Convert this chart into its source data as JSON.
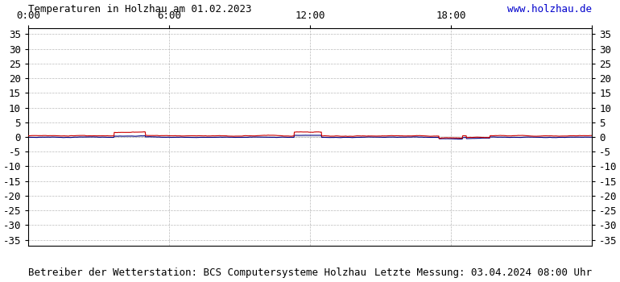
{
  "title": "Temperaturen in Holzhau am 01.02.2023",
  "url_text": "www.holzhau.de",
  "footer_left": "Betreiber der Wetterstation: BCS Computersysteme Holzhau",
  "footer_right": "Letzte Messung: 03.04.2024 08:00 Uhr",
  "ylim": [
    -37,
    37
  ],
  "yticks": [
    -35,
    -30,
    -25,
    -20,
    -15,
    -10,
    -5,
    0,
    5,
    10,
    15,
    20,
    25,
    30,
    35
  ],
  "xlim": [
    0,
    1440
  ],
  "xtick_positions": [
    0,
    360,
    720,
    1080,
    1440
  ],
  "xtick_labels": [
    "0:00",
    "6:00",
    "12:00",
    "18:00",
    ""
  ],
  "bg_color": "#ffffff",
  "plot_bg_color": "#ffffff",
  "grid_color": "#aaaaaa",
  "title_color": "#000000",
  "url_color": "#0000cc",
  "footer_color": "#000000",
  "line1_color": "#cc0000",
  "line2_color": "#000080",
  "title_fontsize": 9,
  "footer_fontsize": 9,
  "url_fontsize": 9,
  "axis_fontsize": 9
}
